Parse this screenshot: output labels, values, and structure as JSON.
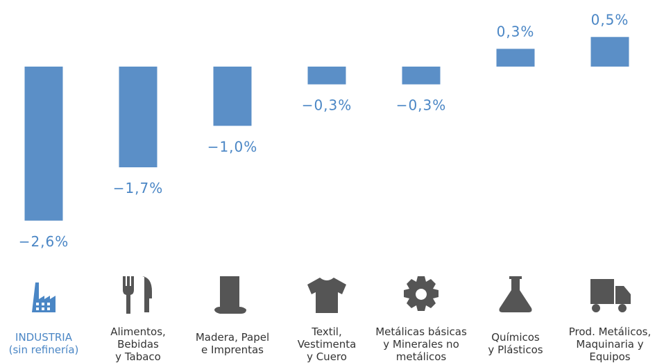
{
  "chart_data": {
    "type": "bar",
    "categories": [
      [
        "INDUSTRIA",
        "(sin refinería)"
      ],
      [
        "Alimentos,",
        "Bebidas",
        "y Tabaco"
      ],
      [
        "Madera, Papel",
        "e Imprentas"
      ],
      [
        "Textil,",
        "Vestimenta",
        "y Cuero"
      ],
      [
        "Metálicas básicas",
        "y Minerales no",
        "metálicos"
      ],
      [
        "Químicos",
        "y Plásticos"
      ],
      [
        "Prod. Metálicos,",
        "Maquinaria y",
        "Equipos"
      ]
    ],
    "values": [
      -2.6,
      -1.7,
      -1.0,
      -0.3,
      -0.3,
      0.3,
      0.5
    ],
    "value_labels": [
      "−2,6%",
      "−1,7%",
      "−1,0%",
      "−0,3%",
      "−0,3%",
      "0,3%",
      "0,5%"
    ],
    "color": "#5b8fc7",
    "ylim": [
      -3,
      1
    ]
  }
}
